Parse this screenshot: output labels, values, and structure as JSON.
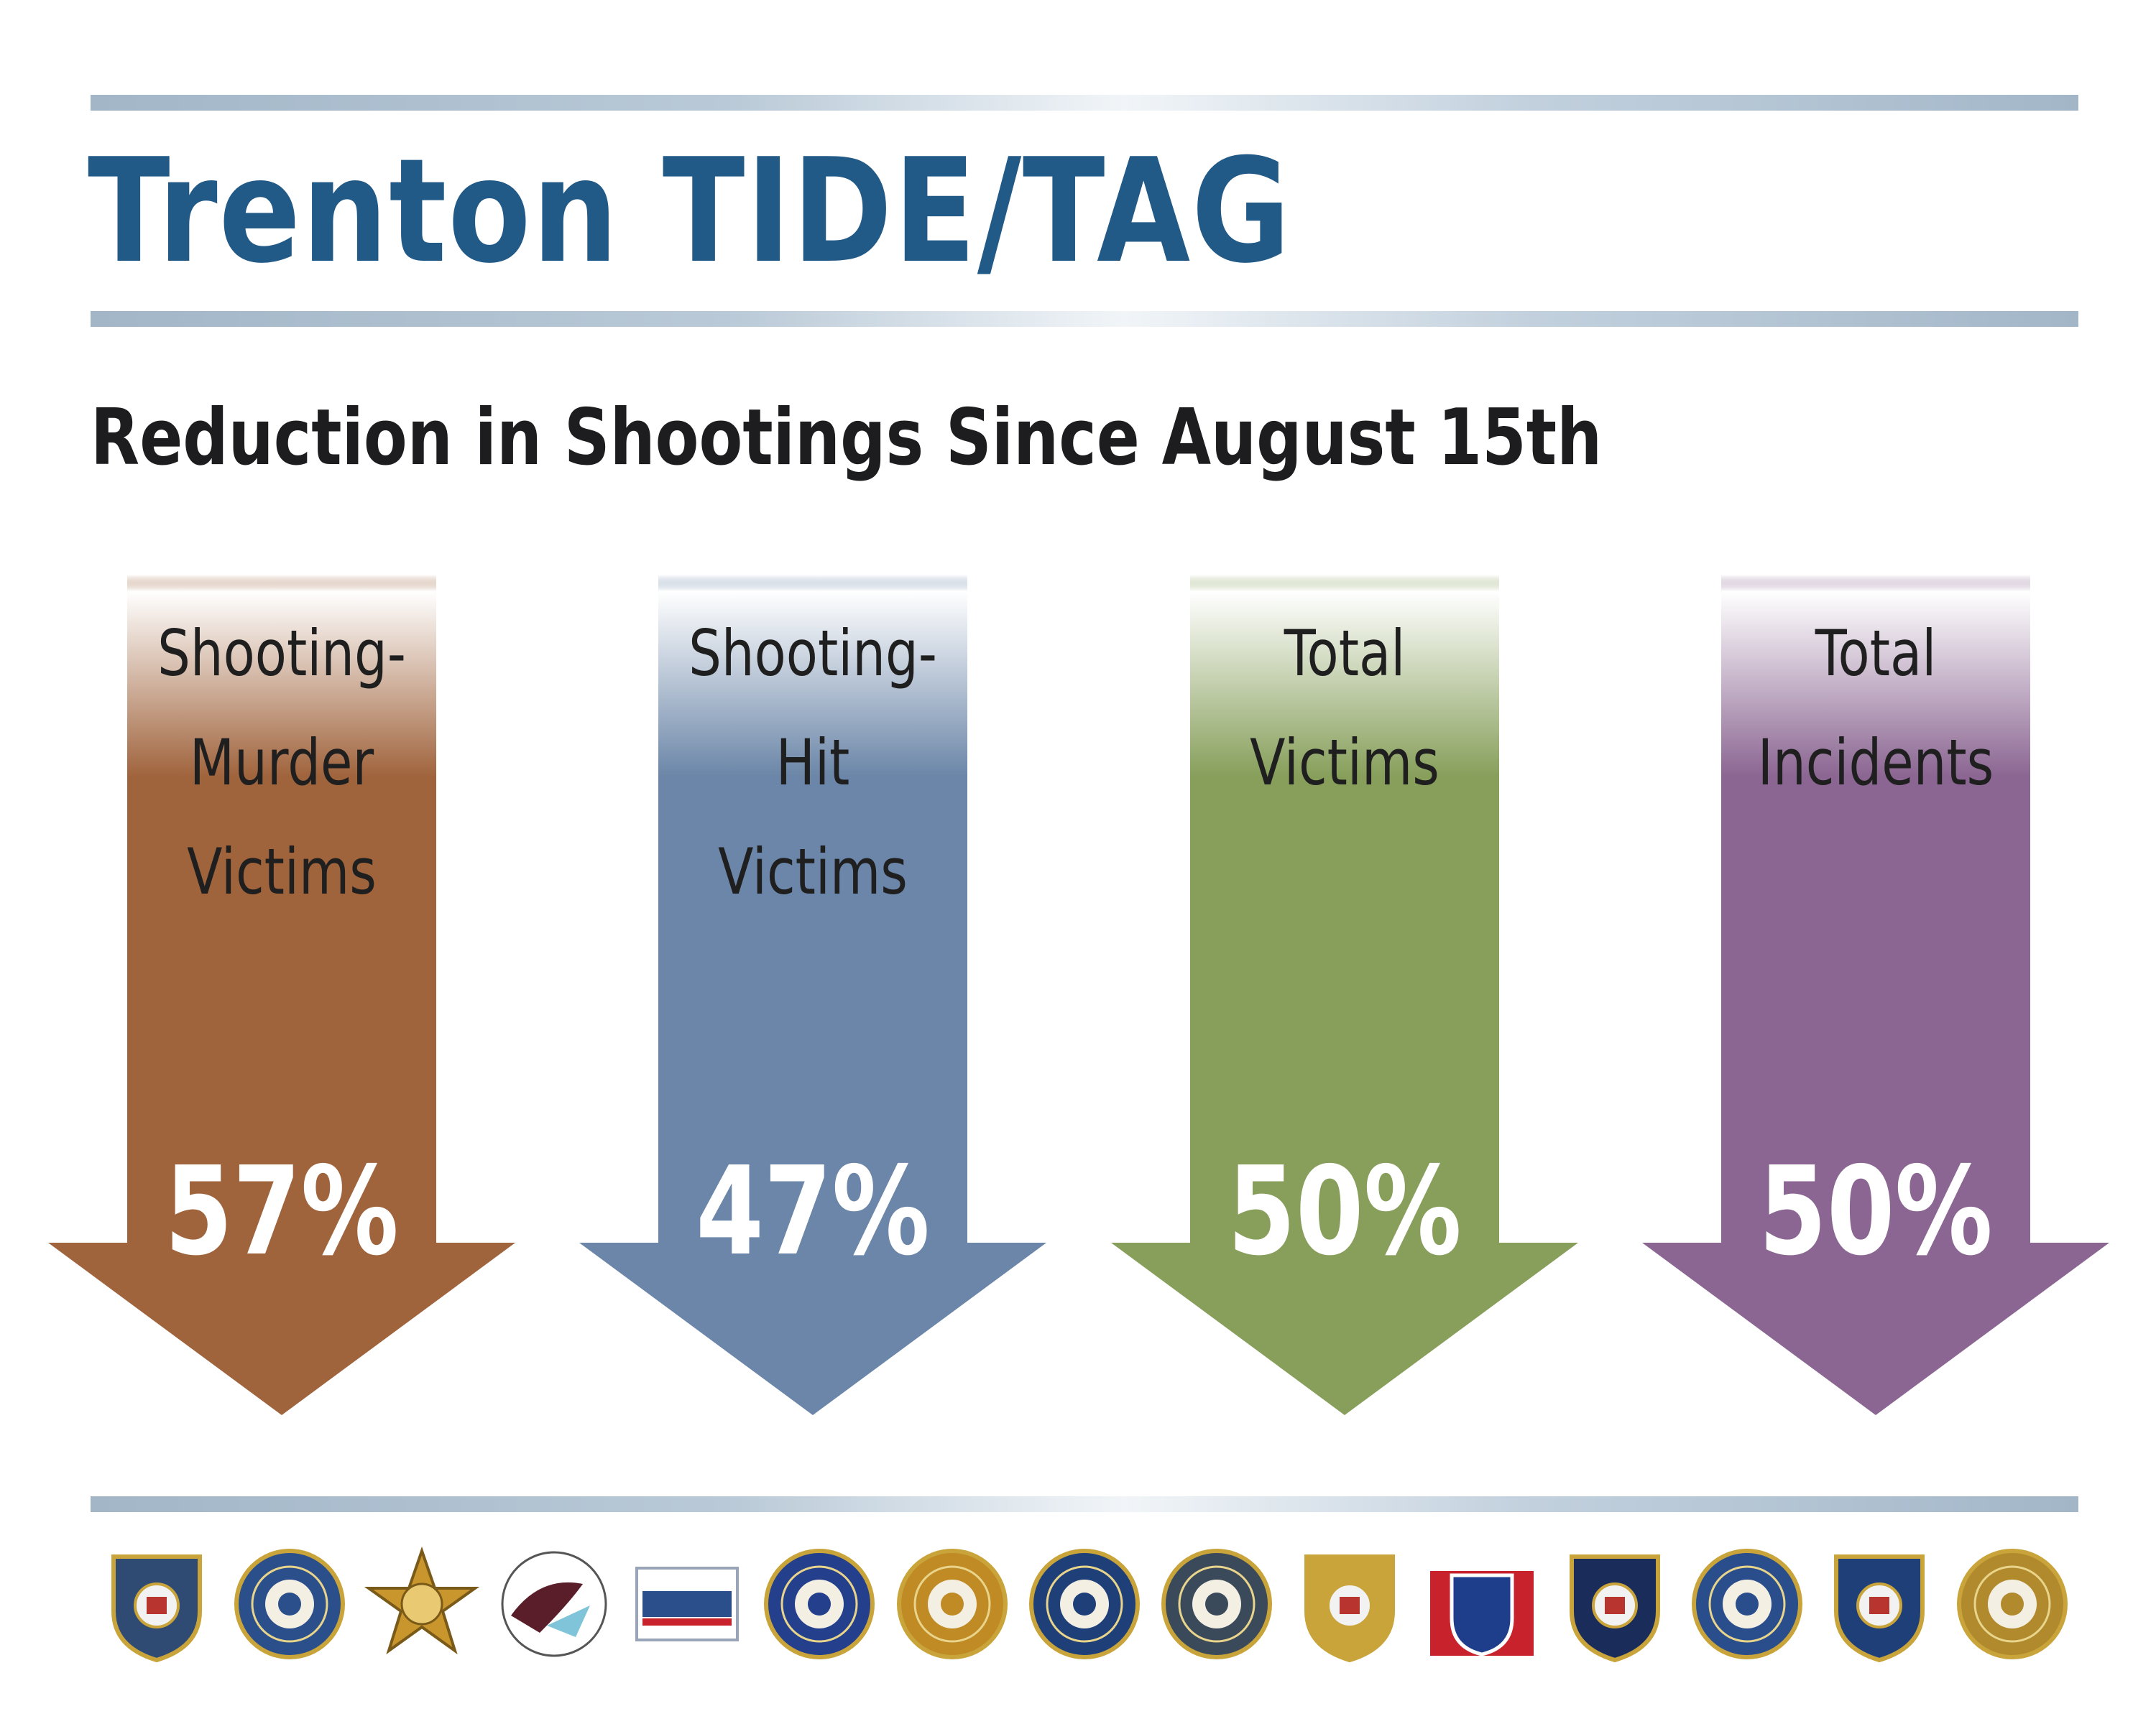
{
  "header": {
    "title": "Trenton TIDE/TAG",
    "subtitle": "Reduction in Shootings Since August 15th"
  },
  "chart_data": {
    "type": "bar",
    "title": "Trenton TIDE/TAG",
    "subtitle": "Reduction in Shootings Since August 15th",
    "categories": [
      "Shooting-Murder Victims",
      "Shooting-Hit Victims",
      "Total Victims",
      "Total Incidents"
    ],
    "values": [
      57,
      47,
      50,
      50
    ],
    "value_labels": [
      "57%",
      "47%",
      "50%",
      "50%"
    ],
    "category_lines": [
      [
        "Shooting-",
        "Murder",
        "Victims"
      ],
      [
        "Shooting-",
        "Hit",
        "Victims"
      ],
      [
        "Total",
        "Victims"
      ],
      [
        "Total",
        "Incidents"
      ]
    ],
    "colors": [
      "#a0643d",
      "#6b86a8",
      "#879f5b",
      "#8b6692"
    ],
    "grid": false,
    "legend": "none"
  },
  "logos": {
    "items": [
      {
        "name": "prosecutors-office-seal",
        "color": "#2f4a73"
      },
      {
        "name": "attorney-general-seal",
        "color": "#2b4f8a"
      },
      {
        "name": "sheriff-star-seal",
        "color": "#c9962e"
      },
      {
        "name": "dea-seal",
        "color": "#5a1d2a"
      },
      {
        "name": "roic-seal",
        "color": "#9aa4b8"
      },
      {
        "name": "fbi-seal",
        "color": "#243f8c"
      },
      {
        "name": "nj-division-seal",
        "color": "#c08a24"
      },
      {
        "name": "nj-treasury-seal",
        "color": "#1f3f78"
      },
      {
        "name": "hamilton-police-seal",
        "color": "#3a4a5a"
      },
      {
        "name": "nj-state-police-seal",
        "color": "#c9a43a"
      },
      {
        "name": "nj-state-parole-seal",
        "color": "#1e3d8a"
      },
      {
        "name": "ewing-police-seal",
        "color": "#1a2c5a"
      },
      {
        "name": "atf-seal",
        "color": "#2a4d8c"
      },
      {
        "name": "police-seal",
        "color": "#1f3f78"
      },
      {
        "name": "us-marshals-seal",
        "color": "#b08a2c"
      }
    ]
  }
}
